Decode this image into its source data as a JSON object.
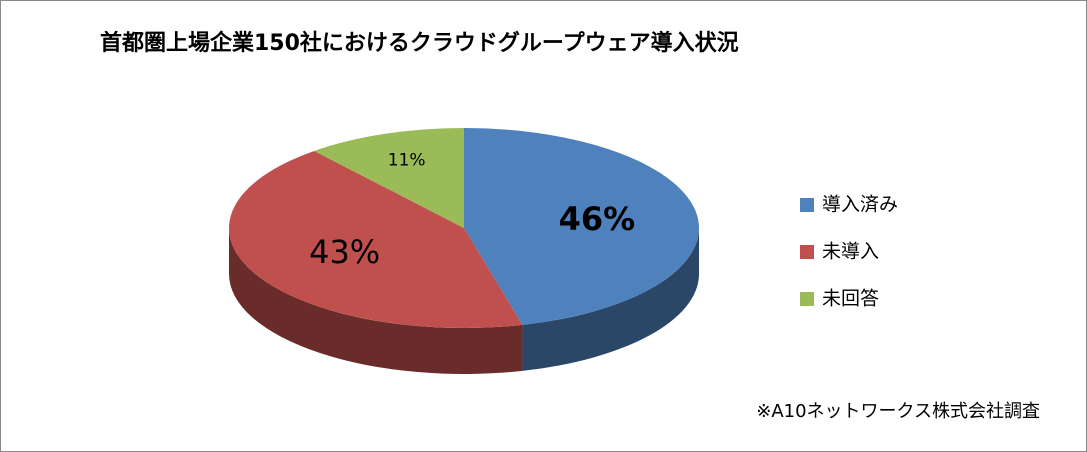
{
  "chart_data": {
    "type": "pie",
    "title": "首都圏上場企業150社におけるクラウドグループウェア導入状況",
    "categories": [
      "導入済み",
      "未導入",
      "未回答"
    ],
    "values": [
      46,
      43,
      11
    ],
    "value_labels": [
      "46%",
      "43%",
      "11%"
    ],
    "colors": [
      "#4f81bd",
      "#c0504d",
      "#9bbb59"
    ],
    "legend": "right",
    "annotation": "※A10ネットワークス株式会社調査"
  }
}
